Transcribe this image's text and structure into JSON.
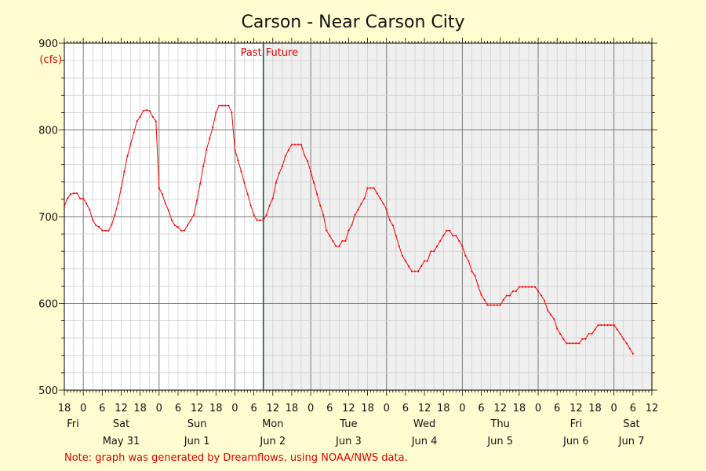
{
  "chart_data": {
    "type": "line",
    "title": "Carson - Near Carson City",
    "ylabel": "(cfs)",
    "ylim": [
      500,
      900
    ],
    "y_ticks": [
      500,
      600,
      700,
      800,
      900
    ],
    "grid": true,
    "x_unit": "hours since Fri May 30 18:00",
    "x_range": [
      0,
      186
    ],
    "x_hour_labels": [
      "18",
      "0",
      "6",
      "12",
      "18",
      "0",
      "6",
      "12",
      "18",
      "0",
      "6",
      "12",
      "18",
      "0",
      "6",
      "12",
      "18",
      "0",
      "6",
      "12",
      "18",
      "0",
      "6",
      "12",
      "18",
      "0",
      "6",
      "12",
      "18",
      "0",
      "6",
      "12"
    ],
    "day_labels": [
      "Fri",
      "Sat",
      "Sun",
      "Mon",
      "Tue",
      "Wed",
      "Thu",
      "Fri",
      "Sat"
    ],
    "date_labels": [
      "May 31",
      "Jun 1",
      "Jun 2",
      "Jun 3",
      "Jun 4",
      "Jun 5",
      "Jun 6",
      "Jun 7"
    ],
    "now_marker_hour": 63,
    "past_label": "Past",
    "future_label": "Future",
    "series": [
      {
        "color": "#ff0000",
        "points": [
          [
            0,
            712
          ],
          [
            1,
            721
          ],
          [
            2,
            726
          ],
          [
            3,
            727
          ],
          [
            4,
            727
          ],
          [
            5,
            721
          ],
          [
            6,
            721
          ],
          [
            7,
            715
          ],
          [
            8,
            708
          ],
          [
            9,
            696
          ],
          [
            10,
            690
          ],
          [
            11,
            688
          ],
          [
            12,
            684
          ],
          [
            13,
            684
          ],
          [
            14,
            684
          ],
          [
            15,
            691
          ],
          [
            16,
            702
          ],
          [
            17,
            716
          ],
          [
            18,
            733
          ],
          [
            19,
            752
          ],
          [
            20,
            770
          ],
          [
            21,
            784
          ],
          [
            22,
            797
          ],
          [
            23,
            810
          ],
          [
            24,
            815
          ],
          [
            25,
            822
          ],
          [
            26,
            823
          ],
          [
            27,
            822
          ],
          [
            28,
            815
          ],
          [
            29,
            810
          ],
          [
            30,
            733
          ],
          [
            31,
            726
          ],
          [
            32,
            715
          ],
          [
            33,
            707
          ],
          [
            34,
            696
          ],
          [
            35,
            690
          ],
          [
            36,
            688
          ],
          [
            37,
            684
          ],
          [
            38,
            684
          ],
          [
            39,
            690
          ],
          [
            40,
            696
          ],
          [
            41,
            702
          ],
          [
            42,
            719
          ],
          [
            43,
            738
          ],
          [
            44,
            758
          ],
          [
            45,
            777
          ],
          [
            46,
            790
          ],
          [
            47,
            803
          ],
          [
            48,
            820
          ],
          [
            49,
            828
          ],
          [
            50,
            828
          ],
          [
            51,
            828
          ],
          [
            52,
            828
          ],
          [
            53,
            820
          ],
          [
            54,
            777
          ],
          [
            55,
            765
          ],
          [
            56,
            752
          ],
          [
            57,
            739
          ],
          [
            58,
            726
          ],
          [
            59,
            713
          ],
          [
            60,
            702
          ],
          [
            61,
            696
          ],
          [
            62,
            696
          ],
          [
            63,
            696
          ],
          [
            64,
            702
          ],
          [
            65,
            713
          ],
          [
            66,
            721
          ],
          [
            67,
            739
          ],
          [
            68,
            750
          ],
          [
            69,
            758
          ],
          [
            70,
            770
          ],
          [
            71,
            777
          ],
          [
            72,
            783
          ],
          [
            73,
            783
          ],
          [
            74,
            783
          ],
          [
            75,
            783
          ],
          [
            76,
            771
          ],
          [
            77,
            764
          ],
          [
            78,
            752
          ],
          [
            79,
            739
          ],
          [
            80,
            726
          ],
          [
            81,
            713
          ],
          [
            82,
            702
          ],
          [
            83,
            684
          ],
          [
            84,
            678
          ],
          [
            85,
            672
          ],
          [
            86,
            666
          ],
          [
            87,
            666
          ],
          [
            88,
            672
          ],
          [
            89,
            672
          ],
          [
            90,
            684
          ],
          [
            91,
            690
          ],
          [
            92,
            702
          ],
          [
            93,
            708
          ],
          [
            94,
            715
          ],
          [
            95,
            721
          ],
          [
            96,
            733
          ],
          [
            97,
            733
          ],
          [
            98,
            733
          ],
          [
            99,
            727
          ],
          [
            100,
            721
          ],
          [
            101,
            715
          ],
          [
            102,
            708
          ],
          [
            103,
            696
          ],
          [
            104,
            690
          ],
          [
            105,
            678
          ],
          [
            106,
            666
          ],
          [
            107,
            655
          ],
          [
            108,
            649
          ],
          [
            109,
            643
          ],
          [
            110,
            637
          ],
          [
            111,
            637
          ],
          [
            112,
            637
          ],
          [
            113,
            643
          ],
          [
            114,
            649
          ],
          [
            115,
            649
          ],
          [
            116,
            660
          ],
          [
            117,
            660
          ],
          [
            118,
            666
          ],
          [
            119,
            672
          ],
          [
            120,
            678
          ],
          [
            121,
            684
          ],
          [
            122,
            684
          ],
          [
            123,
            678
          ],
          [
            124,
            678
          ],
          [
            125,
            672
          ],
          [
            126,
            666
          ],
          [
            127,
            655
          ],
          [
            128,
            649
          ],
          [
            129,
            637
          ],
          [
            130,
            632
          ],
          [
            131,
            620
          ],
          [
            132,
            610
          ],
          [
            133,
            604
          ],
          [
            134,
            598
          ],
          [
            135,
            598
          ],
          [
            136,
            598
          ],
          [
            137,
            598
          ],
          [
            138,
            598
          ],
          [
            139,
            604
          ],
          [
            140,
            609
          ],
          [
            141,
            609
          ],
          [
            142,
            614
          ],
          [
            143,
            614
          ],
          [
            144,
            619
          ],
          [
            145,
            619
          ],
          [
            146,
            619
          ],
          [
            147,
            619
          ],
          [
            148,
            619
          ],
          [
            149,
            619
          ],
          [
            150,
            614
          ],
          [
            151,
            609
          ],
          [
            152,
            603
          ],
          [
            153,
            592
          ],
          [
            154,
            587
          ],
          [
            155,
            582
          ],
          [
            156,
            571
          ],
          [
            157,
            565
          ],
          [
            158,
            559
          ],
          [
            159,
            554
          ],
          [
            160,
            554
          ],
          [
            161,
            554
          ],
          [
            162,
            554
          ],
          [
            163,
            554
          ],
          [
            164,
            559
          ],
          [
            165,
            559
          ],
          [
            166,
            565
          ],
          [
            167,
            565
          ],
          [
            168,
            570
          ],
          [
            169,
            575
          ],
          [
            170,
            575
          ],
          [
            171,
            575
          ],
          [
            172,
            575
          ],
          [
            173,
            575
          ],
          [
            174,
            575
          ],
          [
            175,
            570
          ],
          [
            176,
            565
          ],
          [
            177,
            559
          ],
          [
            178,
            554
          ],
          [
            179,
            548
          ],
          [
            180,
            542
          ]
        ]
      }
    ]
  },
  "footer_note": "Note: graph was generated by Dreamflows, using NOAA/NWS data."
}
